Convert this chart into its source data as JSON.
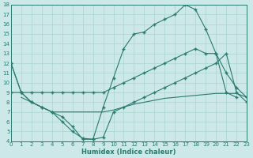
{
  "background_color": "#cce8e8",
  "grid_color": "#aad4d0",
  "line_color": "#2a7a70",
  "xlabel": "Humidex (Indice chaleur)",
  "xlim": [
    0,
    23
  ],
  "ylim": [
    4,
    18
  ],
  "yticks": [
    4,
    5,
    6,
    7,
    8,
    9,
    10,
    11,
    12,
    13,
    14,
    15,
    16,
    17,
    18
  ],
  "xticks": [
    0,
    1,
    2,
    3,
    4,
    5,
    6,
    7,
    8,
    9,
    10,
    11,
    12,
    13,
    14,
    15,
    16,
    17,
    18,
    19,
    20,
    21,
    22,
    23
  ],
  "series": [
    {
      "x": [
        0,
        1,
        2,
        3,
        4,
        5,
        6,
        7,
        8,
        9,
        10,
        11,
        12,
        13,
        14,
        15,
        16,
        17,
        18,
        19,
        20,
        21,
        22
      ],
      "y": [
        12,
        9,
        8,
        7.5,
        7,
        6.5,
        5.5,
        4.2,
        4.2,
        7.5,
        10.5,
        13.5,
        15.0,
        15.2,
        16.0,
        16.5,
        17.0,
        18.0,
        17.5,
        15.5,
        13.0,
        9.0,
        8.5
      ],
      "marker": true
    },
    {
      "x": [
        0,
        1,
        2,
        3,
        4,
        5,
        6,
        7,
        8,
        9,
        10,
        11,
        12,
        13,
        14,
        15,
        16,
        17,
        18,
        19,
        20,
        21,
        22,
        23
      ],
      "y": [
        9,
        9,
        9,
        9,
        9,
        9,
        9,
        9,
        9,
        9,
        9.5,
        10,
        10.5,
        11,
        11.5,
        12,
        12.5,
        13,
        13.5,
        13,
        13,
        11,
        9.5,
        8.5
      ],
      "marker": true
    },
    {
      "x": [
        0,
        1,
        2,
        3,
        4,
        5,
        6,
        7,
        8,
        9,
        10,
        11,
        12,
        13,
        14,
        15,
        16,
        17,
        18,
        19,
        20,
        21,
        22,
        23
      ],
      "y": [
        12,
        9,
        8,
        7.5,
        7.0,
        6.0,
        5.0,
        4.3,
        4.2,
        4.4,
        7.0,
        7.5,
        8.0,
        8.5,
        9.0,
        9.5,
        10.0,
        10.5,
        11.0,
        11.5,
        12.0,
        13.0,
        9.0,
        8.0
      ],
      "marker": true
    },
    {
      "x": [
        1,
        2,
        3,
        4,
        5,
        6,
        7,
        8,
        9,
        10,
        11,
        12,
        13,
        14,
        15,
        16,
        17,
        18,
        19,
        20,
        21,
        22,
        23
      ],
      "y": [
        8.5,
        8,
        7.5,
        7,
        7,
        7,
        7,
        7,
        7,
        7.2,
        7.5,
        7.8,
        8.0,
        8.2,
        8.4,
        8.5,
        8.6,
        8.7,
        8.8,
        8.9,
        8.9,
        8.9,
        8.5
      ],
      "marker": false
    }
  ]
}
